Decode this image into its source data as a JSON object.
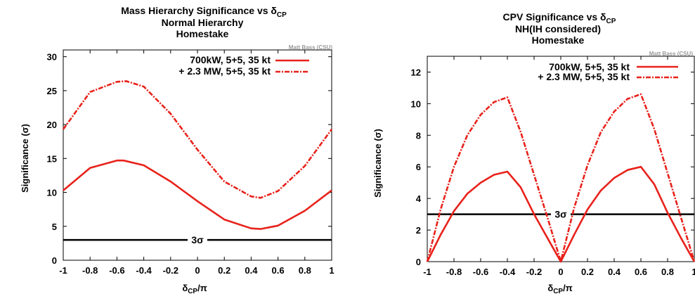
{
  "chart_data": [
    {
      "type": "line",
      "title_lines": [
        "Mass Hierarchy Significance vs δ",
        "Normal Hierarchy",
        "Homestake"
      ],
      "title_sub": "CP",
      "credit": "Matt Bass (CSU)",
      "xlabel": "δ",
      "xlabel_sub": "CP",
      "xlabel_suffix": "/π",
      "ylabel": "Significance (σ)",
      "xlim": [
        -1,
        1
      ],
      "ylim": [
        0,
        31
      ],
      "xticks": [
        "-1",
        "-0.8",
        "-0.6",
        "-0.4",
        "-0.2",
        "0",
        "0.2",
        "0.4",
        "0.6",
        "0.8",
        "1"
      ],
      "yticks": [
        "0",
        "5",
        "10",
        "15",
        "20",
        "25",
        "30"
      ],
      "legend_position": "top-right",
      "reference_line": {
        "y": 3,
        "label": "3σ"
      },
      "series": [
        {
          "name": "700kW, 5+5, 35 kt",
          "style": "solid",
          "color": "#e8221b",
          "x": [
            -1,
            -0.8,
            -0.6,
            -0.55,
            -0.4,
            -0.2,
            0,
            0.2,
            0.4,
            0.47,
            0.6,
            0.8,
            1
          ],
          "y": [
            10.3,
            13.6,
            14.7,
            14.7,
            14.0,
            11.6,
            8.7,
            6.0,
            4.7,
            4.6,
            5.1,
            7.3,
            10.3
          ]
        },
        {
          "name": "+ 2.3 MW, 5+5, 35 kt",
          "style": "dash-dot",
          "color": "#e8221b",
          "x": [
            -1,
            -0.8,
            -0.6,
            -0.53,
            -0.4,
            -0.2,
            0,
            0.2,
            0.4,
            0.47,
            0.6,
            0.8,
            1
          ],
          "y": [
            19.3,
            24.8,
            26.3,
            26.4,
            25.6,
            21.6,
            16.3,
            11.6,
            9.4,
            9.2,
            10.2,
            13.9,
            19.3
          ]
        }
      ]
    },
    {
      "type": "line",
      "title_lines": [
        "CPV Significance vs δ",
        "NH(IH considered)",
        "Homestake"
      ],
      "title_sub": "CP",
      "credit": "Matt Bass (CSU)",
      "xlabel": "δ",
      "xlabel_sub": "CP",
      "xlabel_suffix": "/π",
      "ylabel": "Significance (σ)",
      "xlim": [
        -1,
        1
      ],
      "ylim": [
        0,
        13
      ],
      "xticks": [
        "-1",
        "-0.8",
        "-0.6",
        "-0.4",
        "-0.2",
        "0",
        "0.2",
        "0.4",
        "0.6",
        "0.8",
        "1"
      ],
      "yticks": [
        "0",
        "2",
        "4",
        "6",
        "8",
        "10",
        "12"
      ],
      "legend_position": "top-right",
      "reference_line": {
        "y": 3,
        "label": "3σ"
      },
      "series": [
        {
          "name": "700kW, 5+5, 35 kt",
          "style": "solid",
          "color": "#e8221b",
          "x": [
            -1,
            -0.9,
            -0.8,
            -0.7,
            -0.6,
            -0.5,
            -0.4,
            -0.3,
            -0.2,
            -0.1,
            0,
            0.1,
            0.2,
            0.3,
            0.4,
            0.5,
            0.6,
            0.7,
            0.8,
            0.9,
            1
          ],
          "y": [
            0,
            1.7,
            3.2,
            4.3,
            5.0,
            5.5,
            5.7,
            4.7,
            3.0,
            1.5,
            0,
            1.7,
            3.3,
            4.5,
            5.3,
            5.8,
            6.0,
            4.9,
            3.1,
            1.5,
            0
          ]
        },
        {
          "name": "+ 2.3 MW, 5+5, 35 kt",
          "style": "dash-dot",
          "color": "#e8221b",
          "x": [
            -1,
            -0.9,
            -0.8,
            -0.7,
            -0.6,
            -0.5,
            -0.4,
            -0.3,
            -0.2,
            -0.1,
            0,
            0.1,
            0.2,
            0.3,
            0.4,
            0.5,
            0.6,
            0.7,
            0.8,
            0.9,
            1
          ],
          "y": [
            0,
            3.3,
            6.0,
            8.0,
            9.3,
            10.1,
            10.4,
            8.2,
            5.5,
            2.8,
            0,
            3.4,
            6.1,
            8.2,
            9.5,
            10.3,
            10.6,
            8.4,
            5.6,
            2.8,
            0
          ]
        }
      ]
    }
  ]
}
